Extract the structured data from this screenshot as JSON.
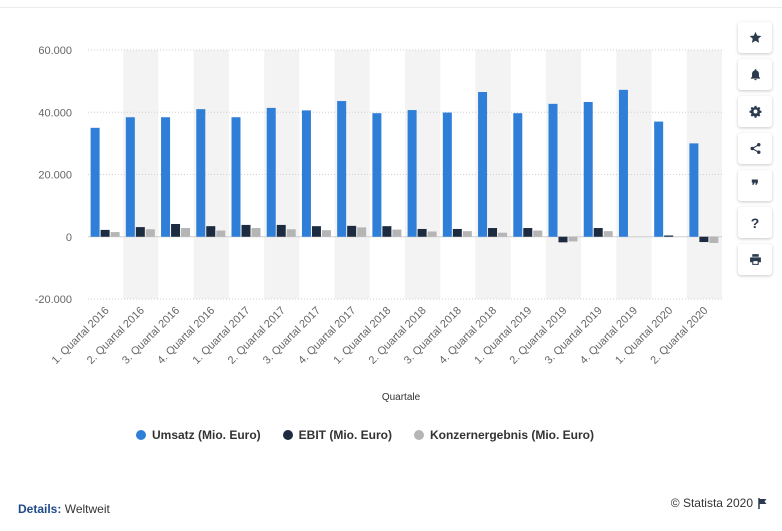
{
  "chart_data": {
    "type": "bar",
    "xlabel": "Quartale",
    "ylabel": "",
    "ylim": [
      -20000,
      60000
    ],
    "yticks": [
      -20000,
      0,
      20000,
      40000,
      60000
    ],
    "ytick_labels": [
      "-20.000",
      "0",
      "20.000",
      "40.000",
      "60.000"
    ],
    "grid": true,
    "legend_position": "bottom",
    "categories": [
      "1. Quartal 2016",
      "2. Quartal 2016",
      "3. Quartal 2016",
      "4. Quartal 2016",
      "1. Quartal 2017",
      "2. Quartal 2017",
      "3. Quartal 2017",
      "4. Quartal 2017",
      "1. Quartal 2018",
      "2. Quartal 2018",
      "3. Quartal 2018",
      "4. Quartal 2018",
      "1. Quartal 2019",
      "2. Quartal 2019",
      "3. Quartal 2019",
      "4. Quartal 2019",
      "1. Quartal 2020",
      "2. Quartal 2020"
    ],
    "series": [
      {
        "name": "Umsatz (Mio. Euro)",
        "color": "#2f7ed8",
        "values": [
          35000,
          38400,
          38400,
          41000,
          38400,
          41400,
          40600,
          43600,
          39700,
          40700,
          39900,
          46500,
          39700,
          42700,
          43300,
          47200,
          37000,
          30000
        ]
      },
      {
        "name": "EBIT (Mio. Euro)",
        "color": "#1c2b3f",
        "values": [
          2200,
          3100,
          4100,
          3400,
          3800,
          3800,
          3400,
          3500,
          3400,
          2500,
          2500,
          2800,
          2800,
          -1800,
          2800,
          0,
          400,
          -1700
        ]
      },
      {
        "name": "Konzernergebnis (Mio. Euro)",
        "color": "#b5b5b5",
        "values": [
          1500,
          2400,
          2800,
          2000,
          2800,
          2400,
          2100,
          3000,
          2300,
          1700,
          1800,
          1300,
          2000,
          -1500,
          1800,
          0,
          0,
          -2000
        ]
      }
    ]
  },
  "sidebar": {
    "buttons": [
      {
        "name": "star-icon"
      },
      {
        "name": "bell-icon"
      },
      {
        "name": "gear-icon"
      },
      {
        "name": "share-icon"
      },
      {
        "name": "quote-icon",
        "glyph": "❞"
      },
      {
        "name": "help-icon",
        "glyph": "?"
      },
      {
        "name": "print-icon"
      }
    ]
  },
  "footer": {
    "details_label": "Details:",
    "details_value": "Weltweit",
    "copyright": "© Statista 2020"
  }
}
